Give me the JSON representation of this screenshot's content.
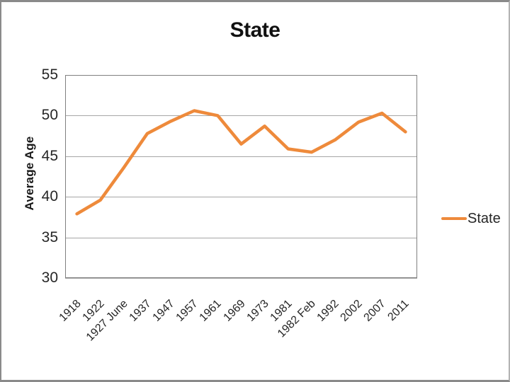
{
  "chart_data": {
    "type": "line",
    "title": "State",
    "xlabel": "",
    "ylabel": "Average Age",
    "ylim": [
      30,
      55
    ],
    "yticks": [
      55,
      50,
      45,
      40,
      35,
      30
    ],
    "grid": "horizontal",
    "legend_position": "right",
    "categories": [
      "1918",
      "1922",
      "1927 June",
      "1937",
      "1947",
      "1957",
      "1961",
      "1969",
      "1973",
      "1981",
      "1982 Feb",
      "1992",
      "2002",
      "2007",
      "2011"
    ],
    "series": [
      {
        "name": "State",
        "color": "#EE8A3B",
        "values": [
          37.9,
          39.6,
          43.6,
          47.8,
          49.3,
          50.6,
          50.0,
          46.5,
          48.7,
          45.9,
          45.5,
          47.0,
          49.2,
          50.3,
          48.0
        ]
      }
    ]
  },
  "legend": {
    "label": "State"
  },
  "colors": {
    "series_line": "#EE8A3B",
    "gridline": "#A6A6A6",
    "plot_border": "#808080",
    "text": "#262626",
    "window_border": "#8A8A8A",
    "background": "#FFFFFF"
  }
}
